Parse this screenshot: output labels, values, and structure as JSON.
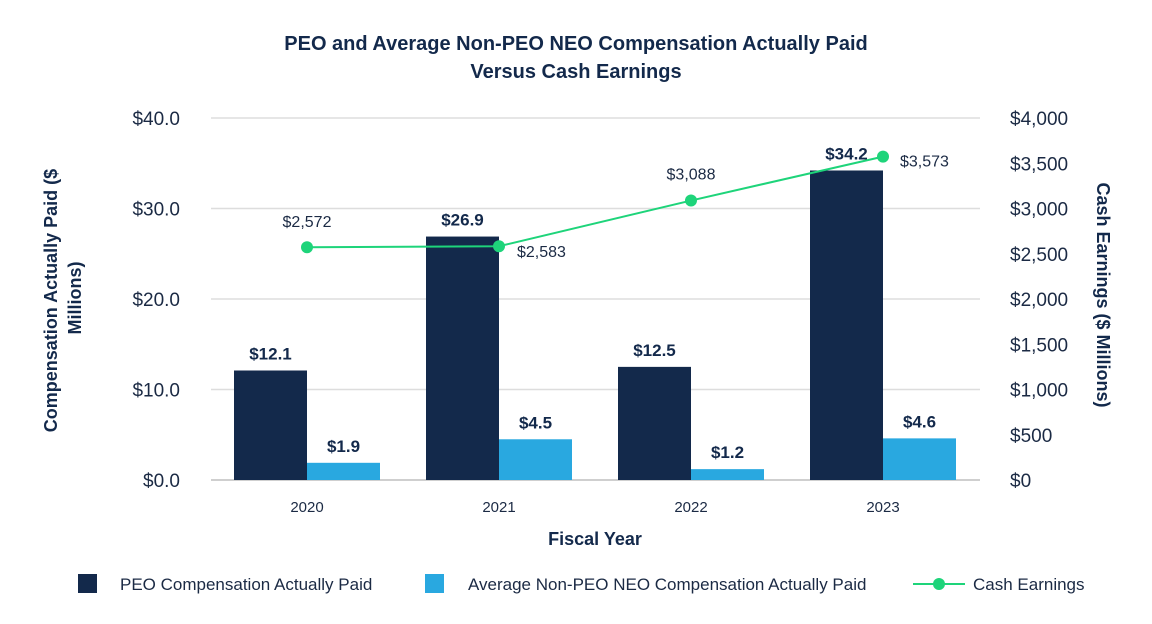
{
  "chart_data": {
    "type": "bar",
    "title_lines": [
      "PEO and Average Non-PEO NEO Compensation Actually Paid",
      "Versus Cash Earnings"
    ],
    "xlabel": "Fiscal Year",
    "ylabel_left_lines": [
      "Compensation Actually Paid ($",
      "Millions)"
    ],
    "ylabel_right": "Cash Earnings ($ Millions)",
    "categories": [
      "2020",
      "2021",
      "2022",
      "2023"
    ],
    "ylim_left": [
      0,
      40
    ],
    "ylim_right": [
      0,
      4000
    ],
    "left_ticks": [
      {
        "value": 0,
        "label": "$0.0"
      },
      {
        "value": 10,
        "label": "$10.0"
      },
      {
        "value": 20,
        "label": "$20.0"
      },
      {
        "value": 30,
        "label": "$30.0"
      },
      {
        "value": 40,
        "label": "$40.0"
      }
    ],
    "right_ticks": [
      {
        "value": 0,
        "label": "$0"
      },
      {
        "value": 500,
        "label": "$500"
      },
      {
        "value": 1000,
        "label": "$1,000"
      },
      {
        "value": 1500,
        "label": "$1,500"
      },
      {
        "value": 2000,
        "label": "$2,000"
      },
      {
        "value": 2500,
        "label": "$2,500"
      },
      {
        "value": 3000,
        "label": "$3,000"
      },
      {
        "value": 3500,
        "label": "$3,500"
      },
      {
        "value": 4000,
        "label": "$4,000"
      }
    ],
    "grid": true,
    "legend_position": "bottom",
    "series": [
      {
        "name": "PEO Compensation Actually Paid",
        "type": "bar",
        "axis": "left",
        "color": "#13294b",
        "values": [
          12.1,
          26.9,
          12.5,
          34.2
        ],
        "labels": [
          "$12.1",
          "$26.9",
          "$12.5",
          "$34.2"
        ]
      },
      {
        "name": "Average Non-PEO NEO Compensation Actually Paid",
        "type": "bar",
        "axis": "left",
        "color": "#29a8e0",
        "values": [
          1.9,
          4.5,
          1.2,
          4.6
        ],
        "labels": [
          "$1.9",
          "$4.5",
          "$1.2",
          "$4.6"
        ]
      },
      {
        "name": "Cash Earnings",
        "type": "line",
        "axis": "right",
        "color": "#1ed47a",
        "values": [
          2572,
          2583,
          3088,
          3573
        ],
        "labels": [
          "$2,572",
          "$2,583",
          "$3,088",
          "$3,573"
        ]
      }
    ]
  }
}
